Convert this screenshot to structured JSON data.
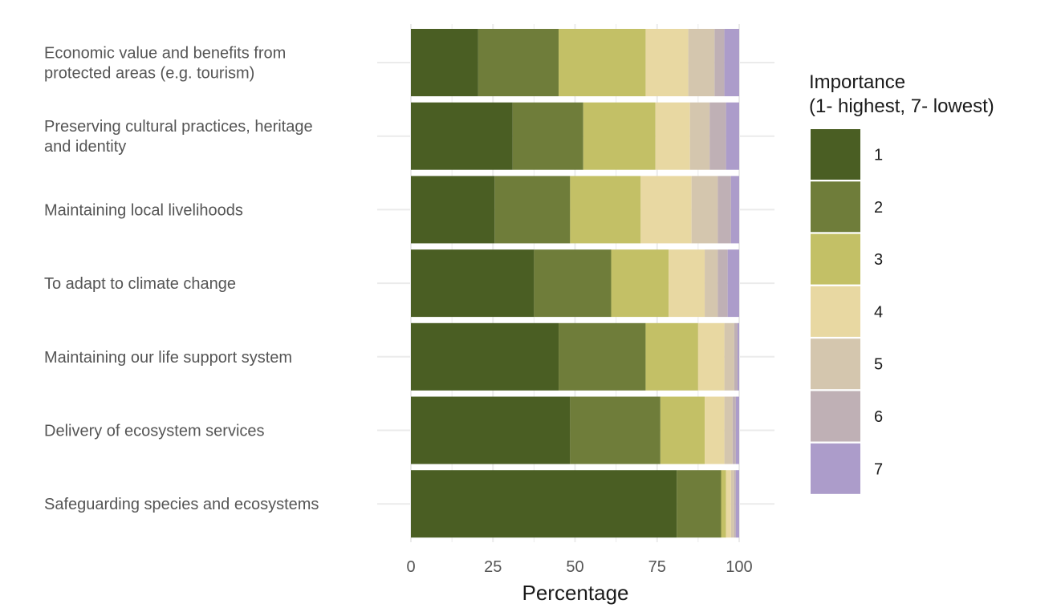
{
  "chart_data": {
    "type": "bar",
    "orientation": "horizontal",
    "stacked": true,
    "title": "",
    "xlabel": "Percentage",
    "ylabel": "",
    "xlim": [
      0,
      100
    ],
    "x_ticks": [
      "0",
      "25",
      "50",
      "75",
      "100"
    ],
    "categories": [
      "Economic value and benefits from\nprotected areas (e.g. tourism)",
      "Preserving cultural practices, heritage\nand identity",
      "Maintaining local livelihoods",
      "To adapt to climate change",
      "Maintaining our life support system",
      "Delivery of ecosystem services",
      "Safeguarding species and ecosystems"
    ],
    "series": [
      {
        "name": "1",
        "color": "#4a5e23",
        "values": [
          20.5,
          31,
          25.5,
          37.5,
          45,
          48.5,
          81
        ]
      },
      {
        "name": "2",
        "color": "#6f7d3a",
        "values": [
          24.5,
          21.5,
          23,
          23.5,
          26.5,
          27.5,
          13.5
        ]
      },
      {
        "name": "3",
        "color": "#c3c066",
        "values": [
          26.5,
          22,
          21.5,
          17.5,
          16,
          13.5,
          1.5
        ]
      },
      {
        "name": "4",
        "color": "#e8d8a2",
        "values": [
          13,
          10.5,
          15.5,
          11,
          8,
          6,
          1.5
        ]
      },
      {
        "name": "5",
        "color": "#d4c6ae",
        "values": [
          8,
          6,
          8,
          4,
          3,
          2.5,
          1
        ]
      },
      {
        "name": "6",
        "color": "#bfb0b5",
        "values": [
          3,
          5,
          4,
          3,
          1,
          1,
          0.5
        ]
      },
      {
        "name": "7",
        "color": "#ac9cca",
        "values": [
          4.5,
          4,
          2.5,
          3.5,
          0.5,
          1,
          1
        ]
      }
    ],
    "legend": {
      "title": "Importance\n(1- highest, 7- lowest)",
      "placement": "right"
    },
    "grid": true
  }
}
